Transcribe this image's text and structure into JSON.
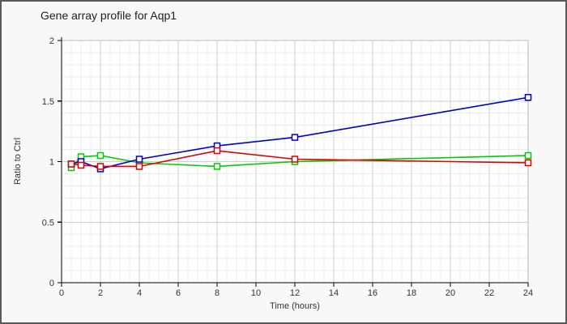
{
  "window": {
    "kind": "chart-figure"
  },
  "colors": {
    "figure_bg": "#f8f8f8",
    "plot_bg": "#ffffff",
    "grid_minor": "#ececec",
    "grid_major": "#cfcfcf",
    "spine_dark": "#000000",
    "spine_light": "#b8b8b8",
    "tick_text": "#333333",
    "title_text": "#202020",
    "outer_border": "#5a5a5a"
  },
  "chart_data": {
    "type": "line",
    "title": "Gene array profile for Aqp1",
    "xlabel": "Time (hours)",
    "ylabel": "Ratio to Ctrl",
    "x": [
      0.5,
      1,
      2,
      4,
      8,
      12,
      24
    ],
    "series": [
      {
        "name": "green-series",
        "color": "#00cc00",
        "values": [
          0.95,
          1.04,
          1.05,
          0.99,
          0.96,
          1.0,
          1.05
        ]
      },
      {
        "name": "blue-series",
        "color": "#0000cc",
        "values": [
          0.98,
          1.0,
          0.94,
          1.02,
          1.13,
          1.2,
          1.53
        ]
      },
      {
        "name": "red-series",
        "color": "#dd0000",
        "values": [
          0.98,
          0.97,
          0.96,
          0.96,
          1.09,
          1.02,
          0.99
        ]
      }
    ],
    "xlim": [
      0,
      24
    ],
    "ylim": [
      0,
      2
    ],
    "x_ticks": [
      0,
      2,
      4,
      6,
      8,
      10,
      12,
      14,
      16,
      18,
      20,
      22,
      24
    ],
    "y_ticks": [
      0,
      0.5,
      1,
      1.5,
      2
    ],
    "x_minor_step": 0.5,
    "y_minor_step": 0.1,
    "grid": true,
    "legend": false,
    "marker": "open-square"
  }
}
